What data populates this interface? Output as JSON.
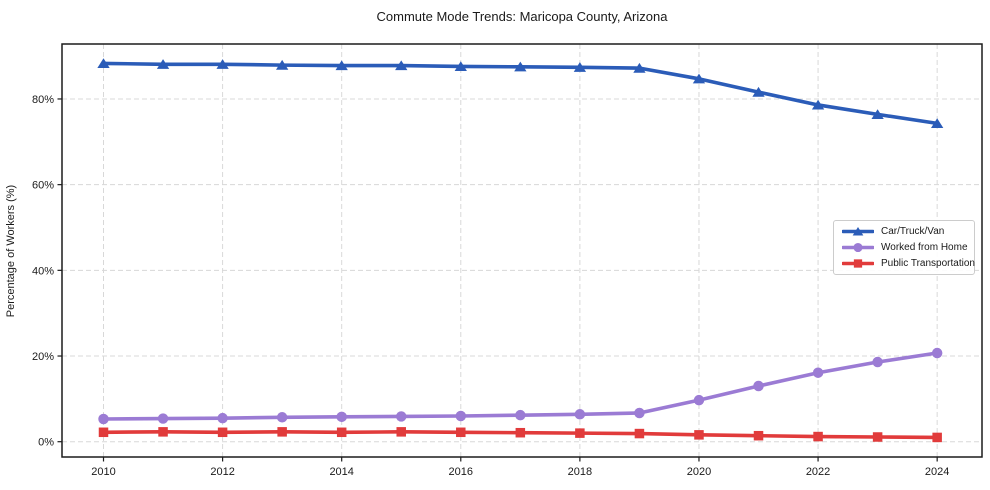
{
  "chart_data": {
    "type": "line",
    "title": "Commute Mode Trends: Maricopa County, Arizona",
    "xlabel": "",
    "ylabel": "Percentage of Workers (%)",
    "x": [
      2010,
      2011,
      2012,
      2013,
      2014,
      2015,
      2016,
      2017,
      2018,
      2019,
      2020,
      2021,
      2022,
      2023,
      2024
    ],
    "series": [
      {
        "name": "Car/Truck/Van",
        "color": "#2b5cb8",
        "marker": "triangle",
        "values": [
          88.3,
          88.1,
          88.1,
          87.9,
          87.8,
          87.8,
          87.6,
          87.5,
          87.4,
          87.2,
          84.7,
          81.6,
          78.6,
          76.4,
          74.3
        ]
      },
      {
        "name": "Worked from Home",
        "color": "#9b7bd4",
        "marker": "circle",
        "values": [
          5.3,
          5.4,
          5.5,
          5.7,
          5.8,
          5.9,
          6.0,
          6.2,
          6.4,
          6.7,
          9.7,
          13.0,
          16.1,
          18.6,
          20.7
        ]
      },
      {
        "name": "Public Transportation",
        "color": "#e13b3b",
        "marker": "square",
        "values": [
          2.2,
          2.3,
          2.2,
          2.3,
          2.2,
          2.3,
          2.2,
          2.1,
          2.0,
          1.9,
          1.6,
          1.4,
          1.2,
          1.1,
          1.0
        ]
      }
    ],
    "x_ticks": [
      2010,
      2012,
      2014,
      2016,
      2018,
      2020,
      2022,
      2024
    ],
    "x_tick_labels": [
      "2010",
      "2012",
      "2014",
      "2016",
      "2018",
      "2020",
      "2022",
      "2024"
    ],
    "y_ticks": [
      0,
      20,
      40,
      60,
      80
    ],
    "y_tick_labels": [
      "0%",
      "20%",
      "40%",
      "60%",
      "80%"
    ],
    "xlim": [
      2009.303,
      2024.753
    ],
    "ylim": [
      -3.57,
      92.83
    ],
    "grid": true,
    "grid_style": "dashed",
    "legend_position": "center-right"
  }
}
